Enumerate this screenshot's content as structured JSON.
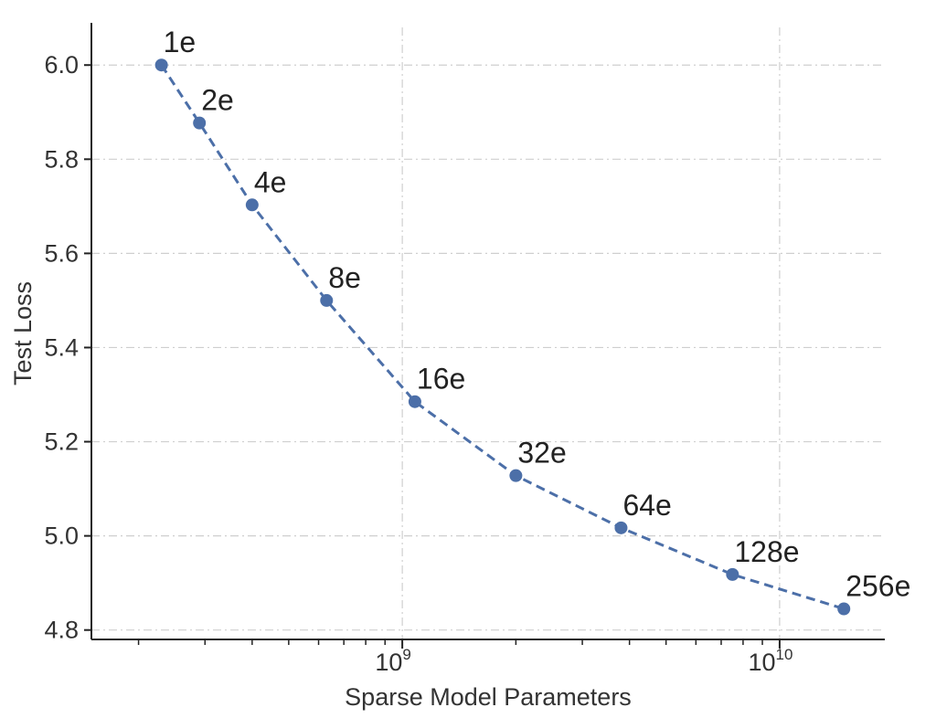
{
  "chart_data": {
    "type": "line",
    "title": "",
    "xlabel": "Sparse Model Parameters",
    "ylabel": "Test Loss",
    "xscale": "log",
    "xlim": [
      150000000,
      19000000000
    ],
    "ylim": [
      4.78,
      6.08
    ],
    "grid": true,
    "y_ticks": [
      {
        "value": 4.8,
        "label": "4.8"
      },
      {
        "value": 5.0,
        "label": "5.0"
      },
      {
        "value": 5.2,
        "label": "5.2"
      },
      {
        "value": 5.4,
        "label": "5.4"
      },
      {
        "value": 5.6,
        "label": "5.6"
      },
      {
        "value": 5.8,
        "label": "5.8"
      },
      {
        "value": 6.0,
        "label": "6.0"
      }
    ],
    "x_ticks": [
      {
        "value": 1000000000,
        "base": "10",
        "exponent": "9"
      },
      {
        "value": 10000000000,
        "base": "10",
        "exponent": "10"
      }
    ],
    "series": [
      {
        "color": "#4c6fa8",
        "points": [
          {
            "x": 230000000,
            "y": 6.0,
            "label": "1e"
          },
          {
            "x": 290000000,
            "y": 5.877,
            "label": "2e"
          },
          {
            "x": 400000000,
            "y": 5.703,
            "label": "4e"
          },
          {
            "x": 630000000,
            "y": 5.5,
            "label": "8e"
          },
          {
            "x": 1080000000,
            "y": 5.285,
            "label": "16e"
          },
          {
            "x": 2000000000,
            "y": 5.128,
            "label": "32e"
          },
          {
            "x": 3800000000,
            "y": 5.017,
            "label": "64e"
          },
          {
            "x": 7500000000,
            "y": 4.918,
            "label": "128e"
          },
          {
            "x": 14800000000,
            "y": 4.845,
            "label": "256e"
          }
        ]
      }
    ]
  }
}
